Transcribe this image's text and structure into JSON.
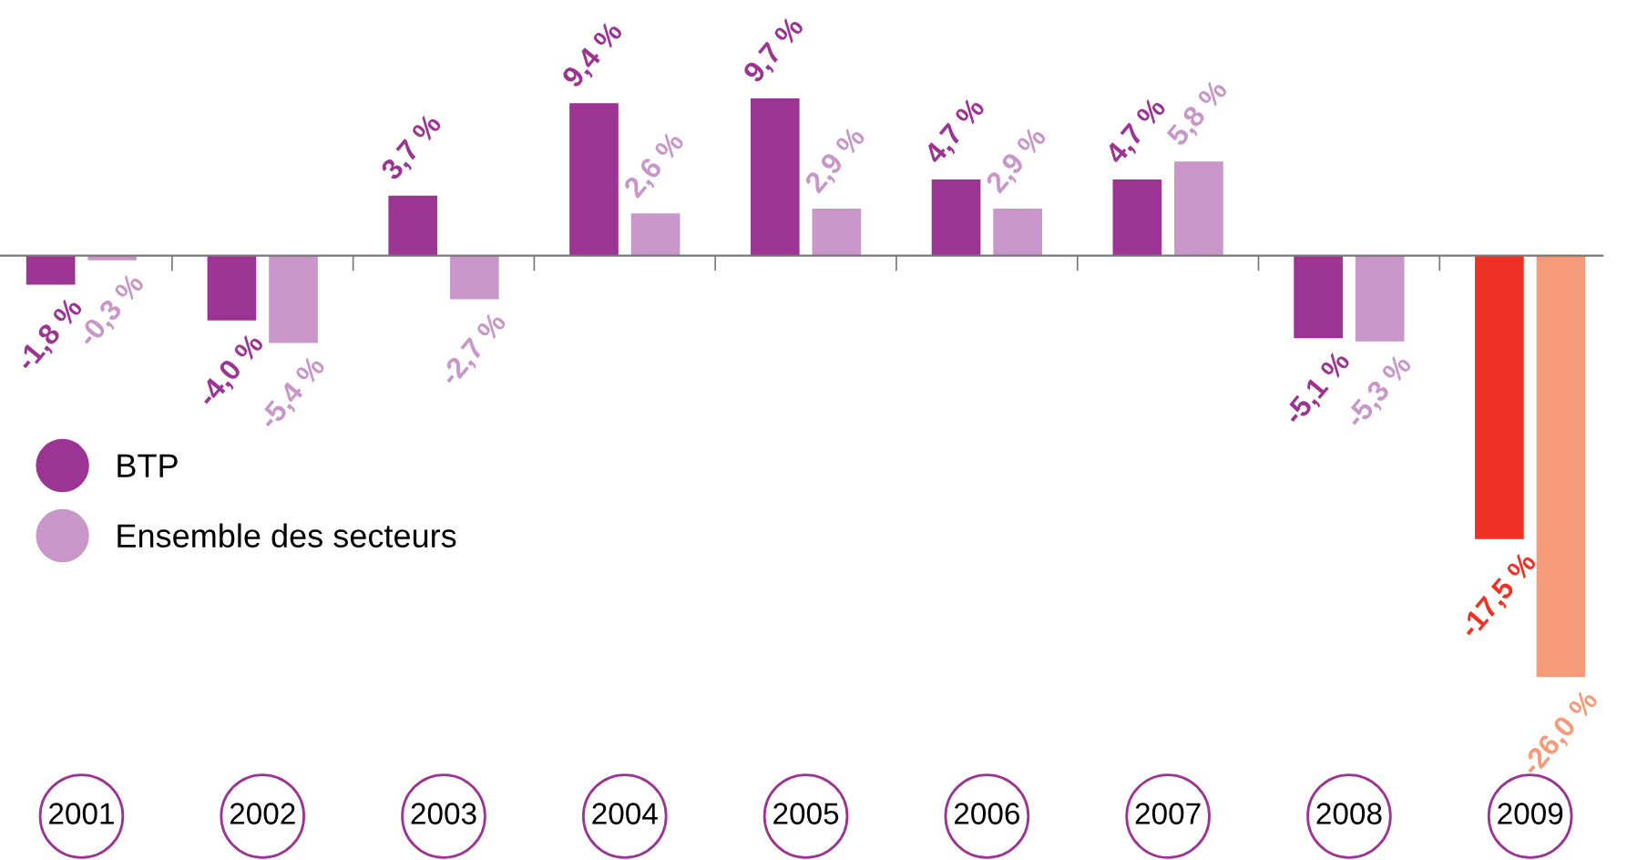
{
  "chart_data": {
    "type": "bar",
    "categories": [
      "2001",
      "2002",
      "2003",
      "2004",
      "2005",
      "2006",
      "2007",
      "2008",
      "2009"
    ],
    "series": [
      {
        "name": "BTP",
        "color": "#9b3493",
        "colors": [
          "#9b3493",
          "#9b3493",
          "#9b3493",
          "#9b3493",
          "#9b3493",
          "#9b3493",
          "#9b3493",
          "#9b3493",
          "#ee3124"
        ],
        "values": [
          -1.8,
          -4.0,
          3.7,
          9.4,
          9.7,
          4.7,
          4.7,
          -5.1,
          -17.5
        ],
        "value_labels": [
          "-1,8 %",
          "-4,0 %",
          "3,7 %",
          "9,4 %",
          "9,7 %",
          "4,7 %",
          "4,7 %",
          "-5,1 %",
          "-17,5 %"
        ]
      },
      {
        "name": "Ensemble des secteurs",
        "color": "#c896c8",
        "colors": [
          "#c896c8",
          "#c896c8",
          "#c896c8",
          "#c896c8",
          "#c896c8",
          "#c896c8",
          "#c896c8",
          "#c896c8",
          "#f59b7a"
        ],
        "values": [
          -0.3,
          -5.4,
          -2.7,
          2.6,
          2.9,
          2.9,
          5.8,
          -5.3,
          -26.0
        ],
        "value_labels": [
          "-0,3 %",
          "-5,4 %",
          "-2,7 %",
          "2,6 %",
          "2,9 %",
          "2,9 %",
          "5,8 %",
          "-5,3 %",
          "-26,0 %"
        ]
      }
    ],
    "legend": "left",
    "grid": false
  }
}
